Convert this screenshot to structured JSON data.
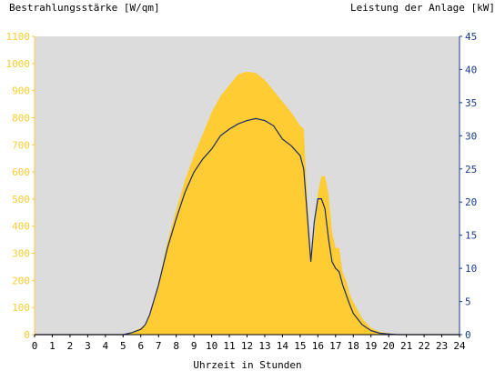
{
  "chart_data": {
    "type": "area",
    "xlabel": "Uhrzeit in Stunden",
    "ylabel_left": "Bestrahlungsstärke [W/qm]",
    "ylabel_right": "Leistung der Anlage [kW]",
    "xlim": [
      0,
      24
    ],
    "ylim_left": [
      0,
      1100
    ],
    "ylim_right": [
      0,
      45
    ],
    "x_ticks": [
      0,
      1,
      2,
      3,
      4,
      5,
      6,
      7,
      8,
      9,
      10,
      11,
      12,
      13,
      14,
      15,
      16,
      17,
      18,
      19,
      20,
      21,
      22,
      23,
      24
    ],
    "y_ticks_left": [
      0,
      100,
      200,
      300,
      400,
      500,
      600,
      700,
      800,
      900,
      1000,
      1100
    ],
    "y_ticks_right": [
      0,
      5,
      10,
      15,
      20,
      25,
      30,
      35,
      40,
      45
    ],
    "grid": false,
    "colors": {
      "plot_background": "#dcdcdc",
      "irradiance_fill": "#ffcc33",
      "power_line": "#1a2a66",
      "left_axis_text": "#ffcc33",
      "right_axis_text": "#1a3a8a"
    },
    "series": [
      {
        "axis": "left",
        "style": "area",
        "x": [
          0,
          5,
          5.5,
          6,
          6.25,
          6.5,
          7,
          7.5,
          8,
          8.5,
          9,
          9.5,
          10,
          10.5,
          11,
          11.5,
          12,
          12.5,
          13,
          13.5,
          14,
          14.5,
          15,
          15.2,
          15.4,
          15.6,
          15.8,
          16,
          16.2,
          16.4,
          16.6,
          16.8,
          17,
          17.2,
          17.4,
          17.6,
          17.8,
          18,
          18.5,
          19,
          19.5,
          20,
          20.5,
          21,
          24
        ],
        "values": [
          0,
          0,
          10,
          25,
          40,
          70,
          190,
          340,
          460,
          570,
          660,
          740,
          820,
          880,
          920,
          960,
          970,
          965,
          940,
          900,
          860,
          820,
          770,
          760,
          500,
          300,
          370,
          520,
          585,
          585,
          520,
          380,
          320,
          320,
          230,
          200,
          150,
          120,
          60,
          25,
          10,
          5,
          0,
          0,
          0
        ]
      },
      {
        "axis": "right",
        "style": "line",
        "x": [
          0,
          5,
          5.5,
          6,
          6.25,
          6.5,
          7,
          7.5,
          8,
          8.5,
          9,
          9.5,
          10,
          10.5,
          11,
          11.5,
          12,
          12.5,
          13,
          13.5,
          14,
          14.5,
          15,
          15.2,
          15.4,
          15.6,
          15.8,
          16,
          16.2,
          16.4,
          16.6,
          16.8,
          17,
          17.2,
          17.4,
          17.6,
          17.8,
          18,
          18.5,
          19,
          19.5,
          20,
          20.5,
          21,
          24
        ],
        "values": [
          0,
          0,
          0.3,
          0.8,
          1.5,
          3,
          7.5,
          13,
          17.5,
          21.5,
          24.5,
          26.5,
          28,
          30,
          31,
          31.8,
          32.3,
          32.6,
          32.3,
          31.5,
          29.5,
          28.5,
          27,
          25,
          18,
          11,
          17,
          20.5,
          20.5,
          19,
          14.5,
          11,
          10,
          9.5,
          7.5,
          6,
          4.5,
          3.2,
          1.5,
          0.6,
          0.2,
          0.1,
          0,
          0,
          0
        ]
      }
    ]
  }
}
